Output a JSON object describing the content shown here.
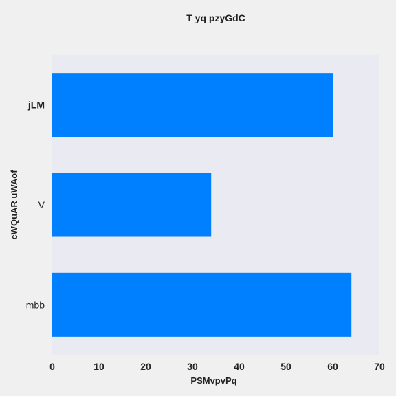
{
  "chart_data": {
    "type": "bar",
    "orientation": "horizontal",
    "title": "T  yq pzyGdC",
    "xlabel": "PSMvpvPq",
    "ylabel": "cWQuAR  uWAof",
    "categories": [
      "mbb",
      "V",
      "jLM"
    ],
    "values": [
      64,
      34,
      60
    ],
    "xlim": [
      0,
      70
    ],
    "xticks": [
      "0",
      "10",
      "20",
      "30",
      "40",
      "50",
      "60",
      "70"
    ],
    "grid": false,
    "colors": {
      "bar": "#007fff",
      "plot_background": "#eaeaf2",
      "figure_background": "#f0f0f0",
      "text": "#222222"
    }
  }
}
